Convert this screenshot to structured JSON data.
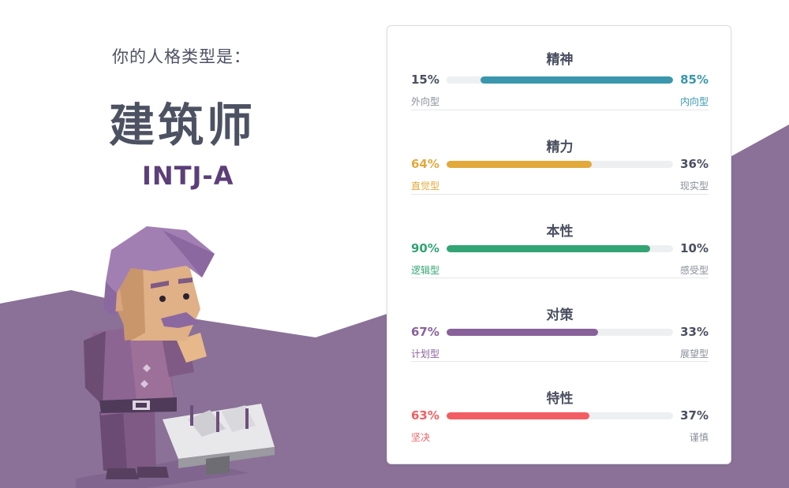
{
  "intro": "你的人格类型是：",
  "type_name": "建筑师",
  "type_code": "INTJ-A",
  "colors": {
    "mountain": "#8b7198",
    "text": "#4d5263",
    "code": "#5c3f78",
    "bar_track": "#eeeff1"
  },
  "figure": {
    "icon": "architect-character-illustration"
  },
  "traits": [
    {
      "title": "精神",
      "left_pct": "15%",
      "right_pct": "85%",
      "left_label": "外向型",
      "right_label": "内向型",
      "dominant": "right",
      "fill_fraction": 0.85,
      "color": "#3a97ad"
    },
    {
      "title": "精力",
      "left_pct": "64%",
      "right_pct": "36%",
      "left_label": "直觉型",
      "right_label": "现实型",
      "dominant": "left",
      "fill_fraction": 0.64,
      "color": "#e2a93b"
    },
    {
      "title": "本性",
      "left_pct": "90%",
      "right_pct": "10%",
      "left_label": "逻辑型",
      "right_label": "感受型",
      "dominant": "left",
      "fill_fraction": 0.9,
      "color": "#33a474"
    },
    {
      "title": "对策",
      "left_pct": "67%",
      "right_pct": "33%",
      "left_label": "计划型",
      "right_label": "展望型",
      "dominant": "left",
      "fill_fraction": 0.67,
      "color": "#88619a"
    },
    {
      "title": "特性",
      "left_pct": "63%",
      "right_pct": "37%",
      "left_label": "坚决",
      "right_label": "谨慎",
      "dominant": "left",
      "fill_fraction": 0.63,
      "color": "#f25e62"
    }
  ]
}
